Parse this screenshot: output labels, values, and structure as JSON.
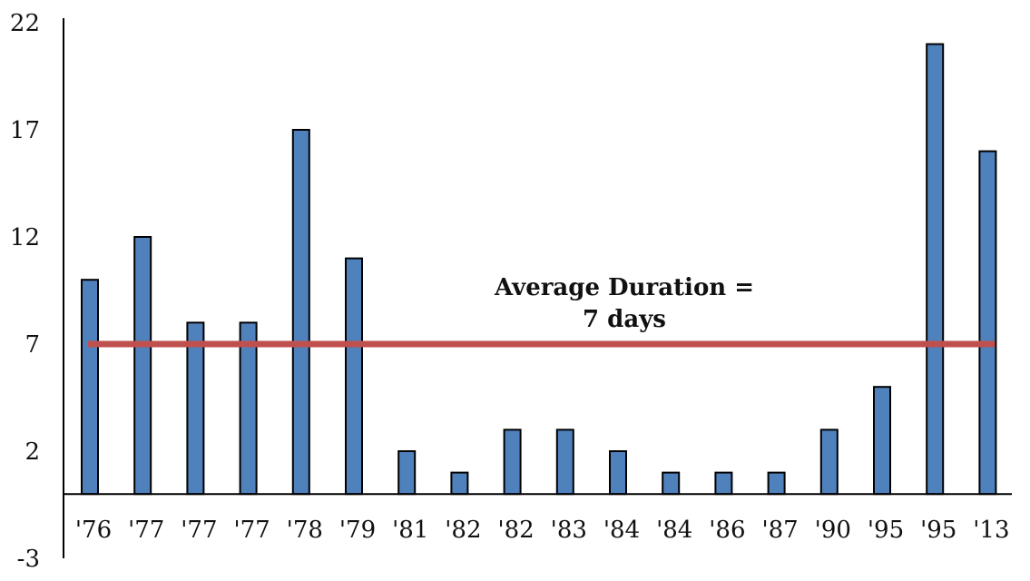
{
  "chart_data": {
    "type": "bar",
    "title": "",
    "xlabel": "",
    "ylabel": "",
    "ylim": [
      -3,
      22
    ],
    "yticks": [
      -3,
      2,
      7,
      12,
      17,
      22
    ],
    "grid": false,
    "categories": [
      "'76",
      "'77",
      "'77",
      "'77",
      "'78",
      "'79",
      "'81",
      "'82",
      "'82",
      "'83",
      "'84",
      "'84",
      "'86",
      "'87",
      "'90",
      "'95",
      "'95",
      "'13"
    ],
    "values": [
      10,
      12,
      8,
      8,
      17,
      11,
      2,
      1,
      3,
      3,
      2,
      1,
      1,
      1,
      3,
      5,
      21,
      16
    ],
    "bar_color": "#4F81BD",
    "reference_line": {
      "value": 7,
      "color": "#C0504D"
    },
    "annotation": {
      "line1": "Average Duration =",
      "line2": "7 days"
    }
  }
}
